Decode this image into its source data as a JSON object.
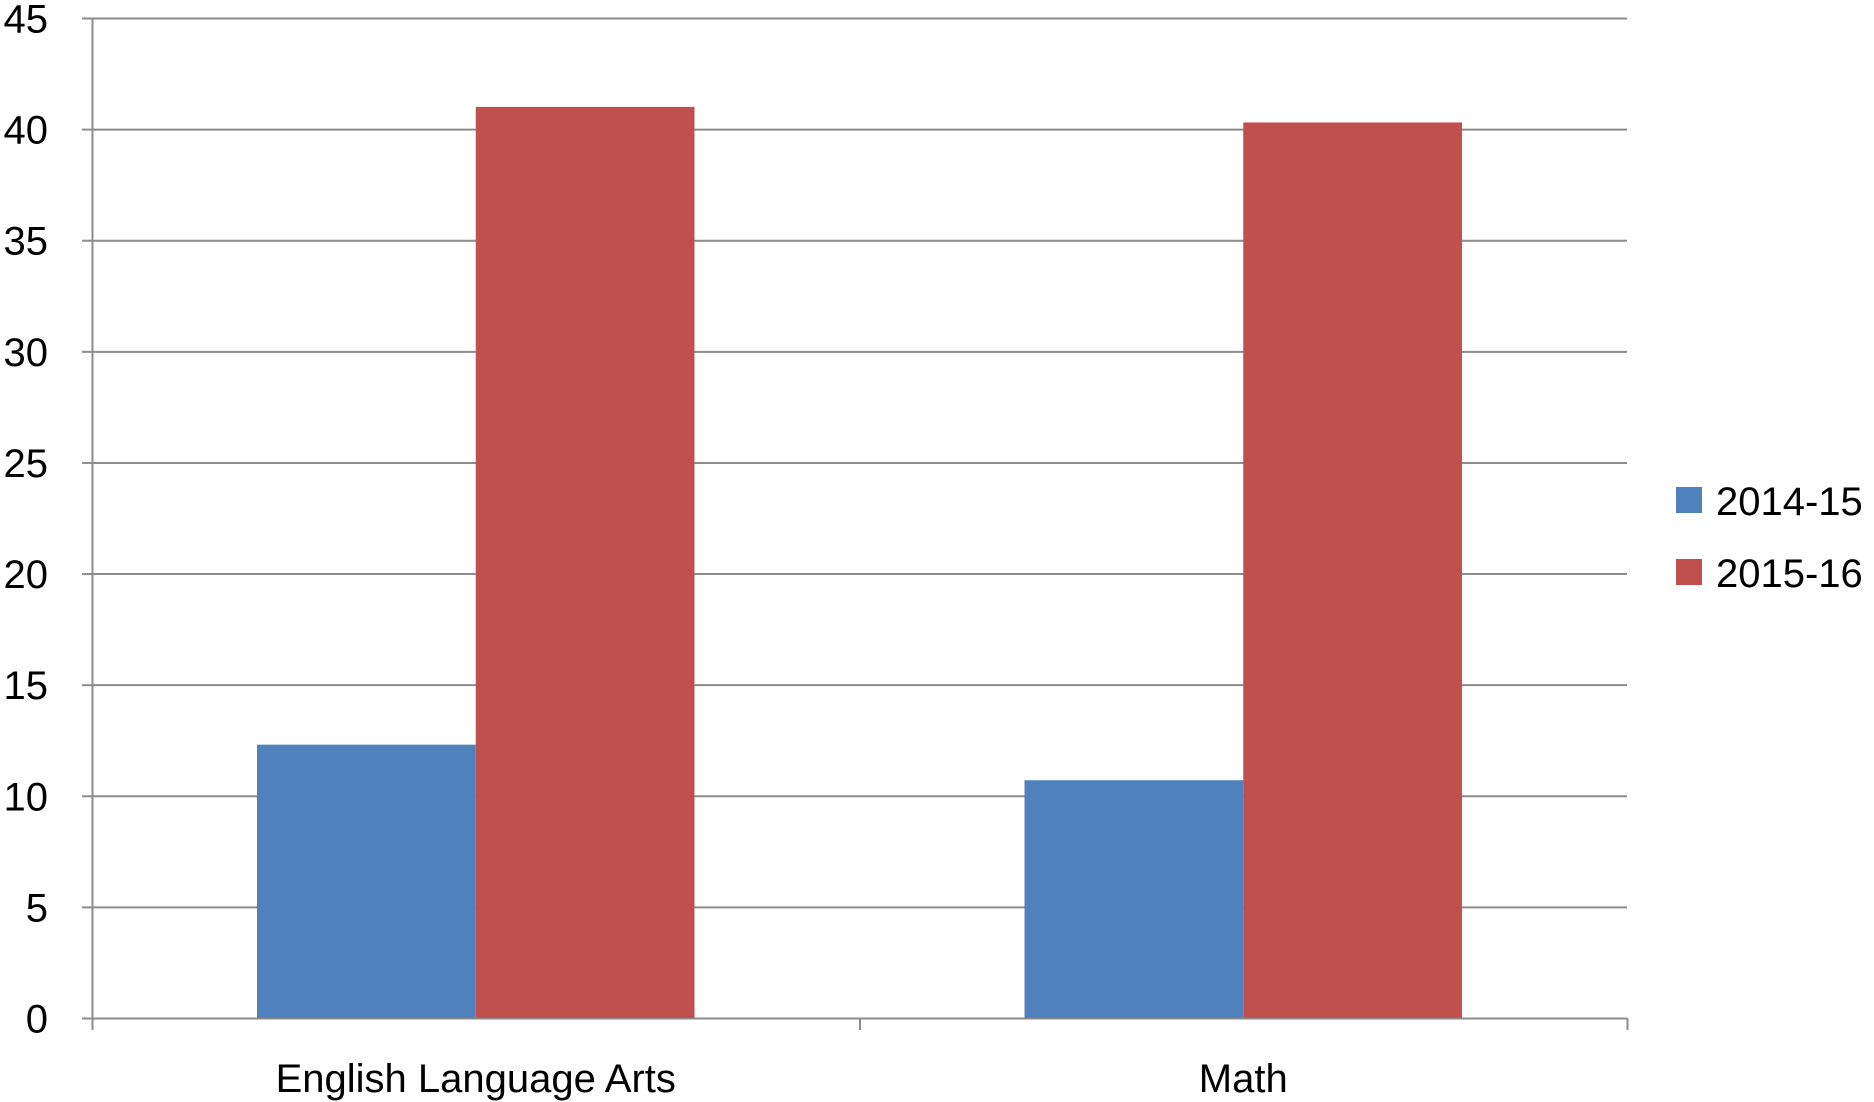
{
  "chart_data": {
    "type": "bar",
    "categories": [
      "English Language Arts",
      "Math"
    ],
    "series": [
      {
        "name": "2014-15",
        "values": [
          12.3,
          10.7
        ],
        "color": "#4F81BD"
      },
      {
        "name": "2015-16",
        "values": [
          41.0,
          40.3
        ],
        "color": "#C0504D"
      }
    ],
    "title": "",
    "xlabel": "",
    "ylabel": "",
    "ylim": [
      0,
      45
    ],
    "yticks": [
      0,
      5,
      10,
      15,
      20,
      25,
      30,
      35,
      40,
      45
    ],
    "ytick_labels": [
      "0",
      "5",
      "10",
      "15",
      "20",
      "25",
      "30",
      "35",
      "40",
      "45"
    ],
    "grid": true,
    "grid_color": "#8C8C8C",
    "legend_position": "right"
  }
}
